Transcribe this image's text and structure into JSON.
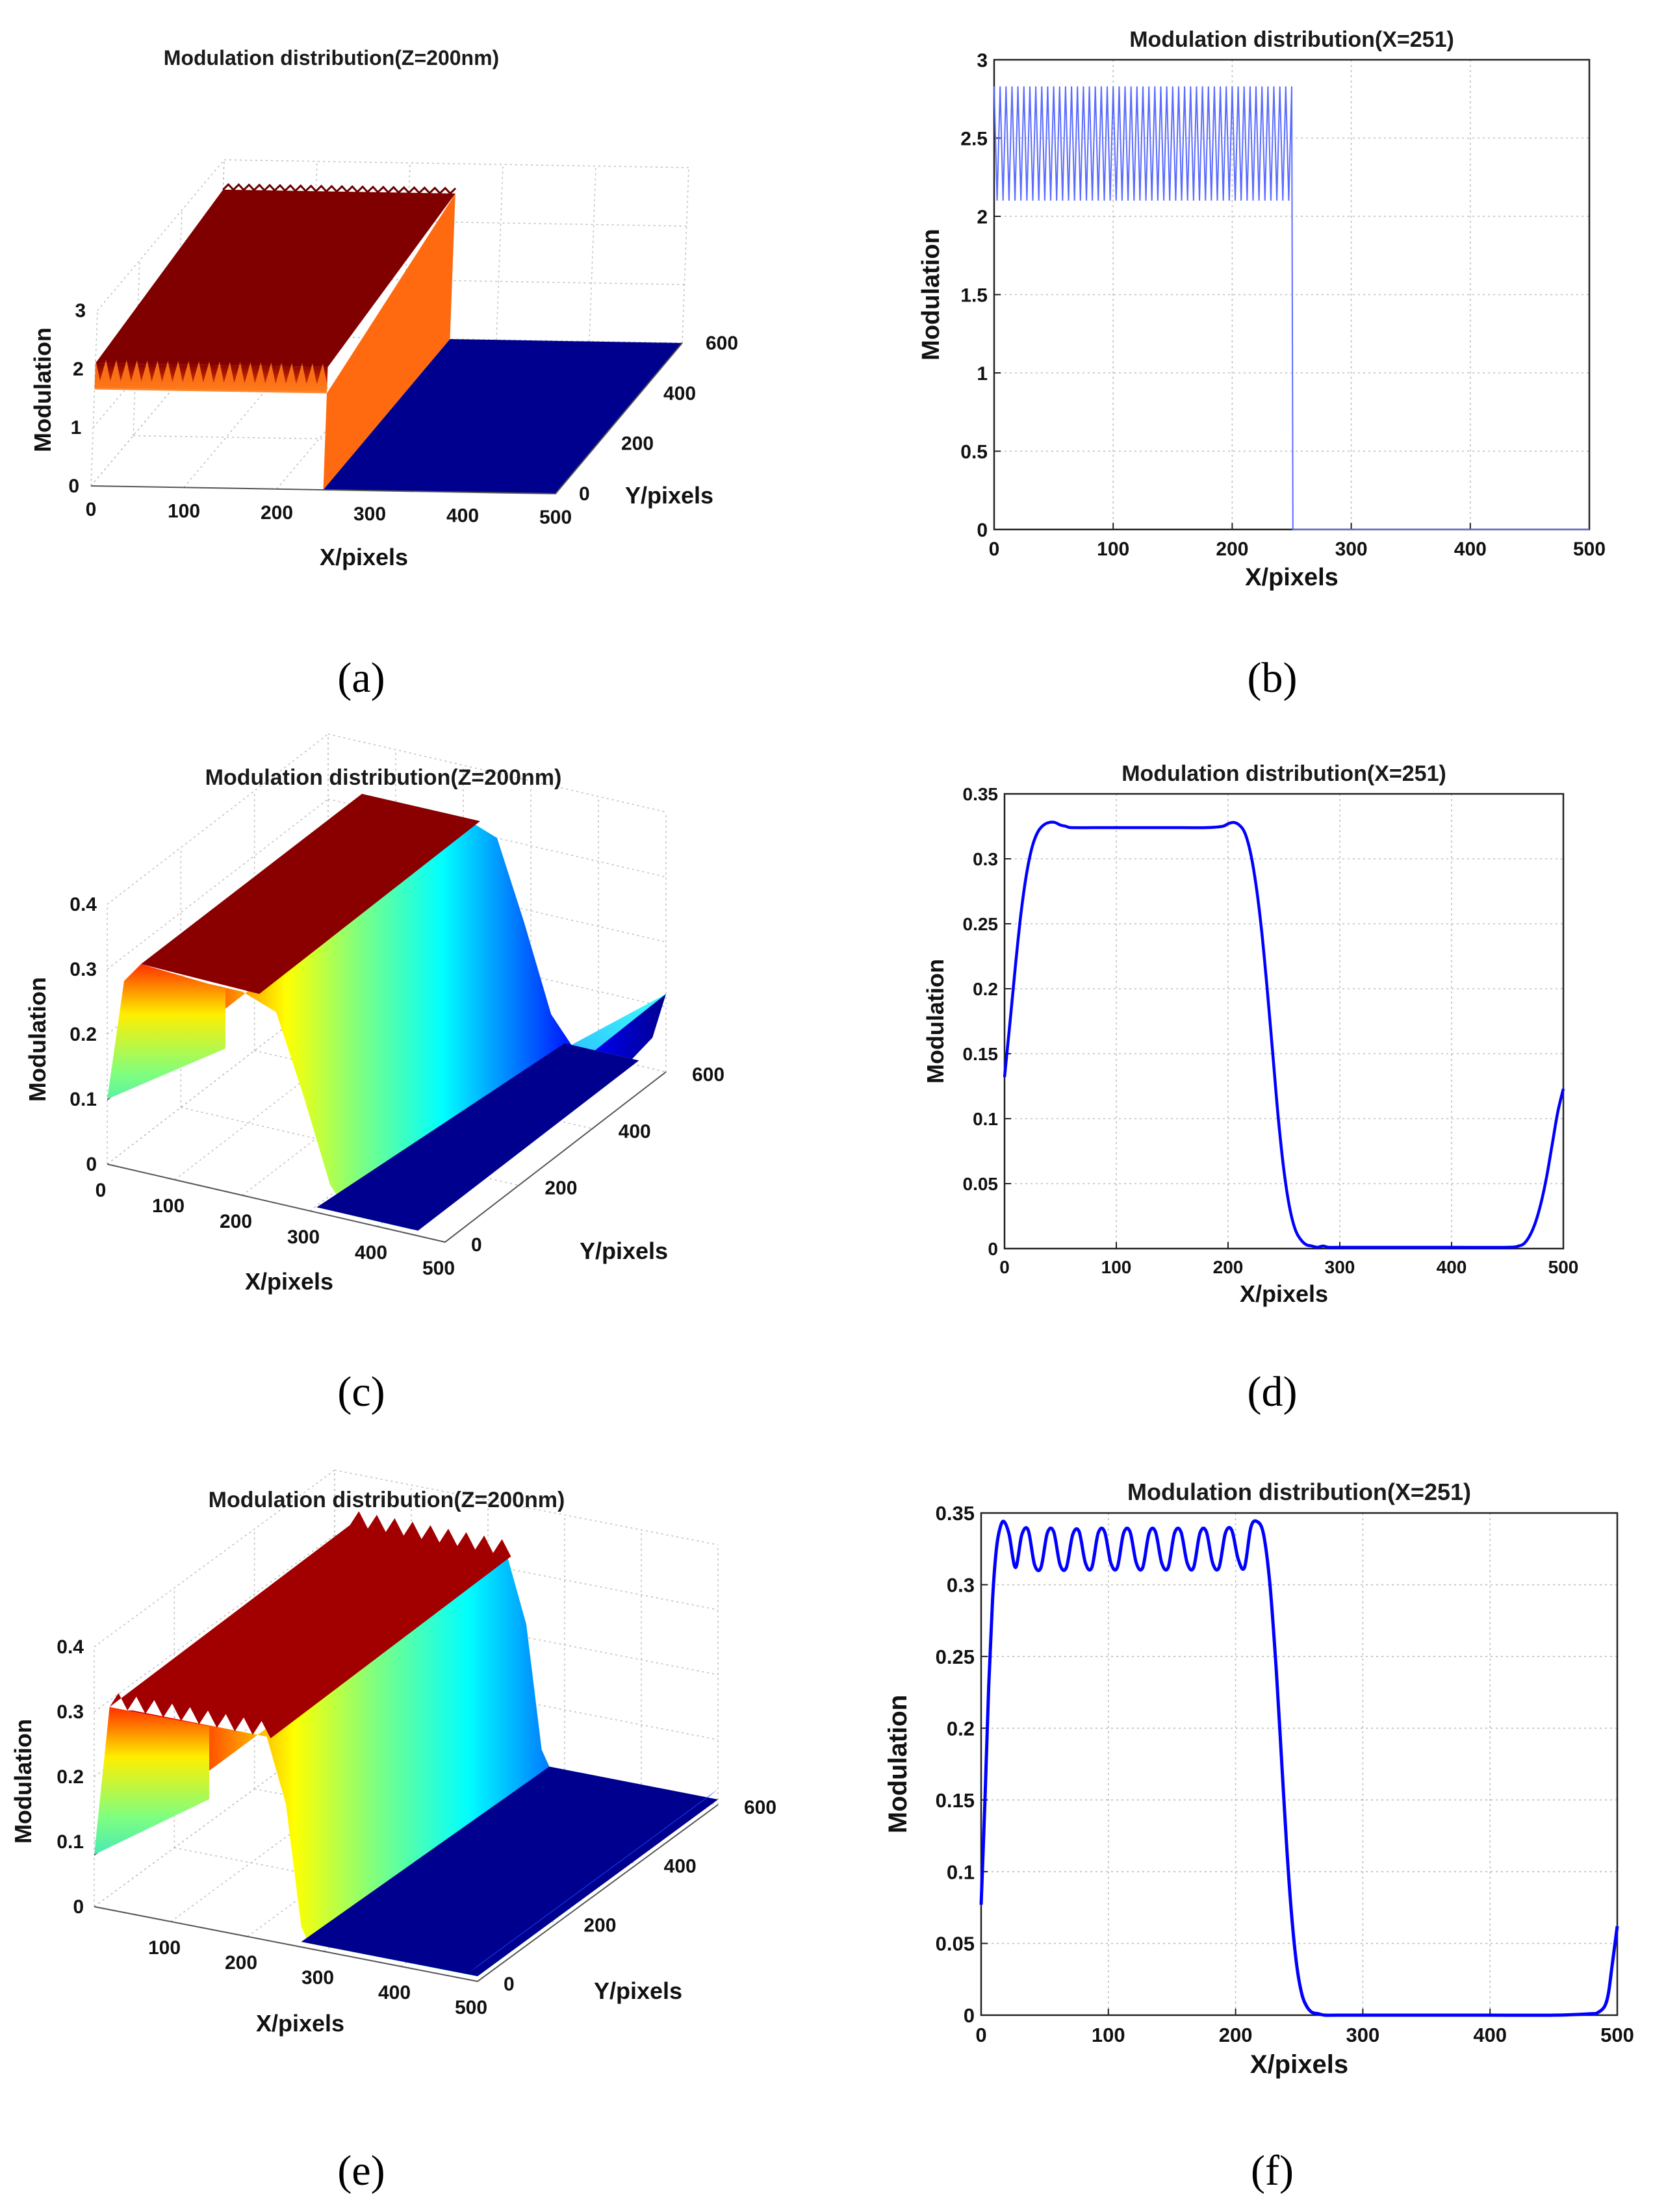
{
  "colors": {
    "line_blue": "#0000ff",
    "line_blue_thin": "#5b6cff",
    "dark_red": "#800000",
    "navy": "#00008f",
    "orange": "#ff6a10",
    "grid": "#bdbdbd"
  },
  "chart_data": [
    {
      "panel": "a",
      "caption": "(a)",
      "type": "surface3d",
      "title": "Modulation distribution(Z=200nm)",
      "xlabel": "X/pixels",
      "ylabel": "Y/pixels",
      "zlabel": "Modulation",
      "xticks": [
        "0",
        "100",
        "200",
        "300",
        "400",
        "500"
      ],
      "yticks": [
        "0",
        "200",
        "400",
        "600"
      ],
      "zticks": [
        "0",
        "1",
        "2",
        "3"
      ],
      "xlim": [
        0,
        500
      ],
      "ylim": [
        0,
        600
      ],
      "zlim": [
        0,
        3
      ],
      "description_values": {
        "plateau_min": 2.1,
        "plateau_max": 2.83,
        "edge_x": 251
      }
    },
    {
      "panel": "b",
      "caption": "(b)",
      "type": "line",
      "title": "Modulation distribution(X=251)",
      "xlabel": "X/pixels",
      "ylabel": "Modulation",
      "xticks": [
        "0",
        "100",
        "200",
        "300",
        "400",
        "500"
      ],
      "yticks": [
        "0",
        "0.5",
        "1",
        "1.5",
        "2",
        "2.5",
        "3"
      ],
      "xlim": [
        0,
        500
      ],
      "ylim": [
        0,
        3
      ],
      "series": [
        {
          "name": "modulation",
          "osc_min": 2.1,
          "osc_max": 2.83,
          "osc_period": 5,
          "osc_start": 0,
          "edge_x": 251,
          "low_value": 0
        }
      ]
    },
    {
      "panel": "c",
      "caption": "(c)",
      "type": "surface3d",
      "title": "Modulation distribution(Z=200nm)",
      "xlabel": "X/pixels",
      "ylabel": "Y/pixels",
      "zlabel": "Modulation",
      "xticks": [
        "0",
        "100",
        "200",
        "300",
        "400",
        "500"
      ],
      "yticks": [
        "0",
        "200",
        "400",
        "600"
      ],
      "zticks": [
        "0",
        "0.1",
        "0.2",
        "0.3",
        "0.4"
      ],
      "xlim": [
        0,
        500
      ],
      "ylim": [
        0,
        600
      ],
      "zlim": [
        0,
        0.4
      ]
    },
    {
      "panel": "d",
      "caption": "(d)",
      "type": "line",
      "title": "Modulation distribution(X=251)",
      "xlabel": "X/pixels",
      "ylabel": "Modulation",
      "xticks": [
        "0",
        "100",
        "200",
        "300",
        "400",
        "500"
      ],
      "yticks": [
        "0",
        "0.05",
        "0.1",
        "0.15",
        "0.2",
        "0.25",
        "0.3",
        "0.35"
      ],
      "xlim": [
        0,
        500
      ],
      "ylim": [
        0,
        0.35
      ],
      "series": [
        {
          "name": "modulation",
          "x": [
            0,
            5,
            10,
            15,
            20,
            25,
            30,
            35,
            40,
            45,
            50,
            55,
            60,
            80,
            100,
            120,
            140,
            160,
            180,
            195,
            200,
            205,
            210,
            215,
            220,
            225,
            230,
            235,
            240,
            245,
            250,
            255,
            260,
            265,
            270,
            275,
            280,
            285,
            290,
            300,
            350,
            400,
            450,
            460,
            465,
            470,
            475,
            480,
            485,
            490,
            495,
            500
          ],
          "y": [
            0.132,
            0.175,
            0.22,
            0.26,
            0.29,
            0.31,
            0.321,
            0.326,
            0.328,
            0.328,
            0.326,
            0.325,
            0.324,
            0.324,
            0.324,
            0.324,
            0.324,
            0.324,
            0.324,
            0.325,
            0.327,
            0.328,
            0.326,
            0.32,
            0.305,
            0.28,
            0.245,
            0.2,
            0.15,
            0.1,
            0.06,
            0.032,
            0.015,
            0.007,
            0.003,
            0.002,
            0.001,
            0.002,
            0.001,
            0.001,
            0.001,
            0.001,
            0.001,
            0.002,
            0.004,
            0.01,
            0.02,
            0.035,
            0.055,
            0.08,
            0.105,
            0.123
          ]
        }
      ]
    },
    {
      "panel": "e",
      "caption": "(e)",
      "type": "surface3d",
      "title": "Modulation distribution(Z=200nm)",
      "xlabel": "X/pixels",
      "ylabel": "Y/pixels",
      "zlabel": "Modulation",
      "xticks": [
        "100",
        "200",
        "300",
        "400",
        "500"
      ],
      "yticks": [
        "0",
        "200",
        "400",
        "600"
      ],
      "zticks": [
        "0",
        "0.1",
        "0.2",
        "0.3",
        "0.4"
      ],
      "xlim": [
        0,
        500
      ],
      "ylim": [
        0,
        600
      ],
      "zlim": [
        0,
        0.4
      ]
    },
    {
      "panel": "f",
      "caption": "(f)",
      "type": "line",
      "title": "Modulation distribution(X=251)",
      "xlabel": "X/pixels",
      "ylabel": "Modulation",
      "xticks": [
        "0",
        "100",
        "200",
        "300",
        "400",
        "500"
      ],
      "yticks": [
        "0",
        "0.05",
        "0.1",
        "0.15",
        "0.2",
        "0.25",
        "0.3",
        "0.35"
      ],
      "xlim": [
        0,
        500
      ],
      "ylim": [
        0,
        0.35
      ],
      "series": [
        {
          "name": "modulation",
          "x": [
            0,
            3,
            6,
            9,
            12,
            15,
            18,
            22,
            27,
            32,
            37,
            42,
            47,
            52,
            57,
            62,
            67,
            72,
            77,
            82,
            87,
            92,
            97,
            102,
            107,
            112,
            117,
            122,
            127,
            132,
            137,
            142,
            147,
            152,
            157,
            162,
            167,
            172,
            177,
            182,
            187,
            192,
            197,
            202,
            207,
            212,
            217,
            222,
            227,
            232,
            236,
            240,
            244,
            248,
            252,
            256,
            260,
            265,
            270,
            280,
            300,
            350,
            400,
            450,
            480,
            485,
            490,
            493,
            496,
            500
          ],
          "y": [
            0.077,
            0.15,
            0.23,
            0.29,
            0.325,
            0.34,
            0.344,
            0.335,
            0.312,
            0.335,
            0.338,
            0.314,
            0.312,
            0.336,
            0.337,
            0.314,
            0.312,
            0.335,
            0.337,
            0.315,
            0.312,
            0.336,
            0.337,
            0.315,
            0.312,
            0.336,
            0.337,
            0.315,
            0.312,
            0.336,
            0.337,
            0.315,
            0.312,
            0.336,
            0.337,
            0.315,
            0.312,
            0.336,
            0.337,
            0.315,
            0.312,
            0.336,
            0.338,
            0.318,
            0.312,
            0.34,
            0.344,
            0.335,
            0.3,
            0.24,
            0.18,
            0.12,
            0.07,
            0.035,
            0.015,
            0.006,
            0.002,
            0.001,
            0.0,
            0.0,
            0.0,
            0.0,
            0.0,
            0.0,
            0.001,
            0.002,
            0.006,
            0.015,
            0.035,
            0.062
          ]
        }
      ]
    }
  ]
}
